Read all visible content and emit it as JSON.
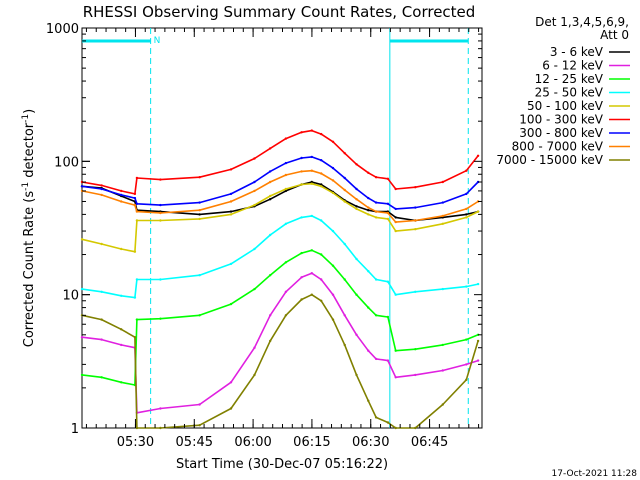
{
  "chart_data": {
    "type": "line",
    "title": "RHESSI Observing Summary Count Rates, Corrected",
    "xlabel": "Start Time (30-Dec-07 05:16:22)",
    "ylabel": "Corrected Count Rate (s⁻¹ detector⁻¹)",
    "ylabel_parts": {
      "main": "Corrected Count Rate (s",
      "sup1": "-1",
      "mid": " detector",
      "sup2": "-1",
      "end": ")"
    },
    "x_range_minutes": [
      0,
      102
    ],
    "x_ticks": [
      {
        "minute": 13.63,
        "label": "05:30"
      },
      {
        "minute": 28.63,
        "label": "05:45"
      },
      {
        "minute": 43.63,
        "label": "06:00"
      },
      {
        "minute": 58.63,
        "label": "06:15"
      },
      {
        "minute": 73.63,
        "label": "06:30"
      },
      {
        "minute": 88.63,
        "label": "06:45"
      }
    ],
    "y_scale": "log",
    "ylim": [
      1,
      1000
    ],
    "y_ticks": [
      {
        "value": 1,
        "label": "1"
      },
      {
        "value": 10,
        "label": "10"
      },
      {
        "value": 100,
        "label": "100"
      },
      {
        "value": 1000,
        "label": "1000"
      }
    ],
    "legend": {
      "placement": "right",
      "header": [
        "Det 1,3,4,5,6,9,",
        "Att 0"
      ]
    },
    "flags": {
      "label": "N",
      "bars": [
        {
          "start": 0,
          "end": 17.5
        },
        {
          "start": 78.5,
          "end": 98.5
        }
      ],
      "dashed_lines": [
        17.5,
        98.5
      ],
      "solid_lines": [
        78.5
      ],
      "color": "#00e5ee"
    },
    "series": [
      {
        "name": "3 - 6 keV",
        "color": "#000000",
        "x": [
          0,
          5,
          10,
          13.5,
          14,
          20,
          30,
          38,
          44,
          48,
          52,
          56,
          58.6,
          61,
          64,
          67,
          70,
          73,
          75,
          78,
          80,
          85,
          92,
          98,
          101
        ],
        "y": [
          65,
          63,
          55,
          50,
          43,
          42,
          40,
          42,
          46,
          52,
          60,
          67,
          70,
          67,
          59,
          51,
          46,
          43,
          42,
          42,
          38,
          36,
          38,
          40,
          42
        ]
      },
      {
        "name": "6 - 12 keV",
        "color": "#e020e0",
        "x": [
          0,
          5,
          10,
          13.5,
          14,
          20,
          30,
          38,
          44,
          48,
          52,
          56,
          58.6,
          61,
          64,
          67,
          70,
          73,
          75,
          78,
          80,
          85,
          92,
          98,
          101
        ],
        "y": [
          4.8,
          4.6,
          4.2,
          4.0,
          1.3,
          1.4,
          1.5,
          2.2,
          4.0,
          7.0,
          10.5,
          13.5,
          14.5,
          13.0,
          10.0,
          7.0,
          5.0,
          3.8,
          3.3,
          3.2,
          2.4,
          2.5,
          2.7,
          3.0,
          3.2
        ]
      },
      {
        "name": "12 - 25 keV",
        "color": "#00ff00",
        "x": [
          0,
          5,
          10,
          13.5,
          14,
          20,
          30,
          38,
          44,
          48,
          52,
          56,
          58.6,
          61,
          64,
          67,
          70,
          73,
          75,
          78,
          80,
          85,
          92,
          98,
          101
        ],
        "y": [
          2.5,
          2.4,
          2.2,
          2.1,
          6.5,
          6.6,
          7.0,
          8.5,
          11.0,
          14.0,
          17.5,
          20.5,
          21.5,
          20.0,
          16.5,
          13.0,
          10.0,
          8.0,
          7.0,
          6.8,
          3.8,
          3.9,
          4.2,
          4.6,
          5.0
        ]
      },
      {
        "name": "25 - 50 keV",
        "color": "#00ffff",
        "x": [
          0,
          5,
          10,
          13.5,
          14,
          20,
          30,
          38,
          44,
          48,
          52,
          56,
          58.6,
          61,
          64,
          67,
          70,
          73,
          75,
          78,
          80,
          85,
          92,
          98,
          101
        ],
        "y": [
          11,
          10.5,
          9.8,
          9.5,
          13,
          13,
          14,
          17,
          22,
          28,
          34,
          38,
          39,
          36,
          30,
          24,
          18.5,
          15,
          13,
          12.5,
          10,
          10.5,
          11,
          11.5,
          12
        ]
      },
      {
        "name": "50 - 100 keV",
        "color": "#d4c800",
        "x": [
          0,
          5,
          10,
          13.5,
          14,
          20,
          30,
          38,
          44,
          48,
          52,
          56,
          58.6,
          61,
          64,
          67,
          70,
          73,
          75,
          78,
          80,
          85,
          92,
          98,
          101
        ],
        "y": [
          26,
          24,
          22,
          21,
          36,
          36,
          37,
          40,
          47,
          55,
          62,
          67,
          68,
          65,
          58,
          50,
          44,
          40,
          38,
          37,
          30,
          31,
          34,
          38,
          42
        ]
      },
      {
        "name": "100 - 300 keV",
        "color": "#ff0000",
        "x": [
          0,
          5,
          10,
          13.5,
          14,
          20,
          30,
          38,
          44,
          48,
          52,
          56,
          58.6,
          61,
          64,
          67,
          70,
          73,
          75,
          78,
          80,
          85,
          92,
          98,
          101
        ],
        "y": [
          70,
          66,
          60,
          57,
          75,
          73,
          76,
          87,
          105,
          125,
          148,
          165,
          170,
          160,
          140,
          115,
          95,
          82,
          76,
          74,
          62,
          64,
          70,
          85,
          110
        ]
      },
      {
        "name": "300 - 800 keV",
        "color": "#0000ff",
        "x": [
          0,
          5,
          10,
          13.5,
          14,
          20,
          30,
          38,
          44,
          48,
          52,
          56,
          58.6,
          61,
          64,
          67,
          70,
          73,
          75,
          78,
          80,
          85,
          92,
          98,
          101
        ],
        "y": [
          65,
          62,
          56,
          53,
          48,
          47,
          49,
          57,
          70,
          84,
          97,
          106,
          108,
          102,
          89,
          75,
          62,
          53,
          49,
          48,
          44,
          45,
          49,
          57,
          70
        ]
      },
      {
        "name": "800 - 7000 keV",
        "color": "#ff8000",
        "x": [
          0,
          5,
          10,
          13.5,
          14,
          20,
          30,
          38,
          44,
          48,
          52,
          56,
          58.6,
          61,
          64,
          67,
          70,
          73,
          75,
          78,
          80,
          85,
          92,
          98,
          101
        ],
        "y": [
          60,
          56,
          50,
          47,
          42,
          41,
          43,
          50,
          60,
          70,
          79,
          84,
          85,
          81,
          72,
          61,
          52,
          45,
          42,
          41,
          35,
          36,
          39,
          44,
          50
        ]
      },
      {
        "name": "7000 - 15000 keV",
        "color": "#808000",
        "x": [
          0,
          5,
          10,
          13.5,
          14,
          20,
          30,
          38,
          44,
          48,
          52,
          56,
          58.6,
          61,
          64,
          67,
          70,
          73,
          75,
          78,
          80,
          85,
          92,
          98,
          101
        ],
        "y": [
          7.0,
          6.5,
          5.5,
          4.8,
          1.0,
          1.0,
          1.05,
          1.4,
          2.5,
          4.5,
          7.0,
          9.2,
          10.0,
          9.0,
          6.5,
          4.2,
          2.5,
          1.6,
          1.2,
          1.1,
          1.0,
          1.0,
          1.5,
          2.3,
          4.5
        ]
      }
    ],
    "grid": false
  },
  "footer": {
    "timestamp": "17-Oct-2021 11:28"
  }
}
